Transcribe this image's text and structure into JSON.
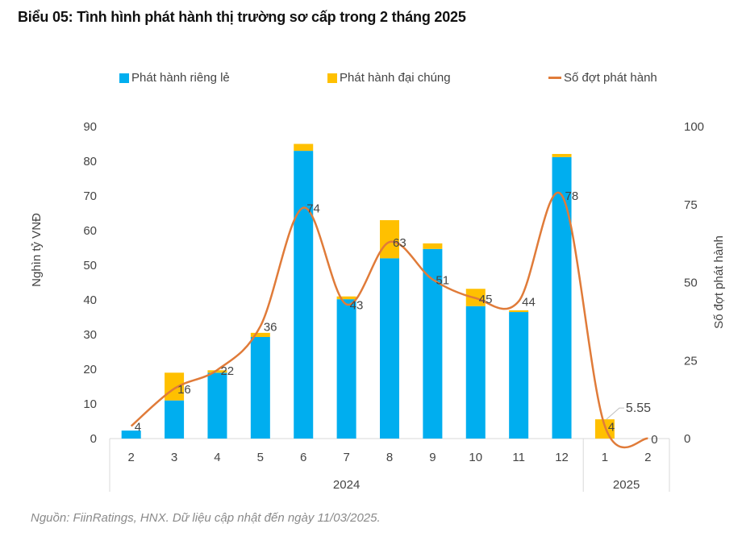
{
  "title": "Biểu 05: Tình hình phát hành thị trường sơ cấp trong 2 tháng 2025",
  "source": "Nguồn: FiinRatings, HNX. Dữ liệu cập nhật đến ngày 11/03/2025.",
  "legend": [
    {
      "label": "Phát hành riêng lẻ",
      "color": "#00AEEF",
      "kind": "bar"
    },
    {
      "label": "Phát hành đại chúng",
      "color": "#FFC000",
      "kind": "bar"
    },
    {
      "label": "Số đợt phát hành",
      "color": "#E07B39",
      "kind": "line"
    }
  ],
  "chart_data": {
    "type": "bar",
    "title": "Biểu 05: Tình hình phát hành thị trường sơ cấp trong 2 tháng 2025",
    "categories": [
      "2",
      "3",
      "4",
      "5",
      "6",
      "7",
      "8",
      "9",
      "10",
      "11",
      "12",
      "1",
      "2"
    ],
    "category_groups": [
      {
        "label": "2024",
        "count": 11
      },
      {
        "label": "2025",
        "count": 2
      }
    ],
    "series": [
      {
        "name": "Phát hành riêng lẻ",
        "type": "bar",
        "axis": "left",
        "color": "#00AEEF",
        "values": [
          2.3,
          11.0,
          19.0,
          29.3,
          83.0,
          40.2,
          52.0,
          54.7,
          38.2,
          36.5,
          81.2,
          0,
          0
        ]
      },
      {
        "name": "Phát hành đại chúng",
        "type": "bar",
        "axis": "left",
        "color": "#FFC000",
        "values": [
          0,
          8.0,
          0.7,
          1.2,
          2.0,
          0.8,
          11.0,
          1.6,
          5.0,
          0.5,
          0.9,
          5.55,
          0
        ]
      },
      {
        "name": "Số đợt phát hành",
        "type": "line",
        "axis": "right",
        "color": "#E07B39",
        "values": [
          4,
          16,
          22,
          36,
          74,
          43,
          63,
          51,
          45,
          44,
          78,
          4,
          0
        ]
      }
    ],
    "line_labels": [
      "4",
      "16",
      "22",
      "36",
      "74",
      "43",
      "63",
      "51",
      "45",
      "44",
      "78",
      "4",
      "0"
    ],
    "bar_annotation": {
      "index": 11,
      "label": "5.55"
    },
    "ylabel": "Nghìn tỷ VNĐ",
    "y2label": "Số đợt phát hành",
    "xlabel": "",
    "ylim": [
      0,
      90
    ],
    "yticks": [
      0,
      10,
      20,
      30,
      40,
      50,
      60,
      70,
      80,
      90
    ],
    "y2lim": [
      0,
      100
    ],
    "y2ticks": [
      0,
      25,
      50,
      75,
      100
    ],
    "grid": false,
    "legend_position": "top"
  }
}
